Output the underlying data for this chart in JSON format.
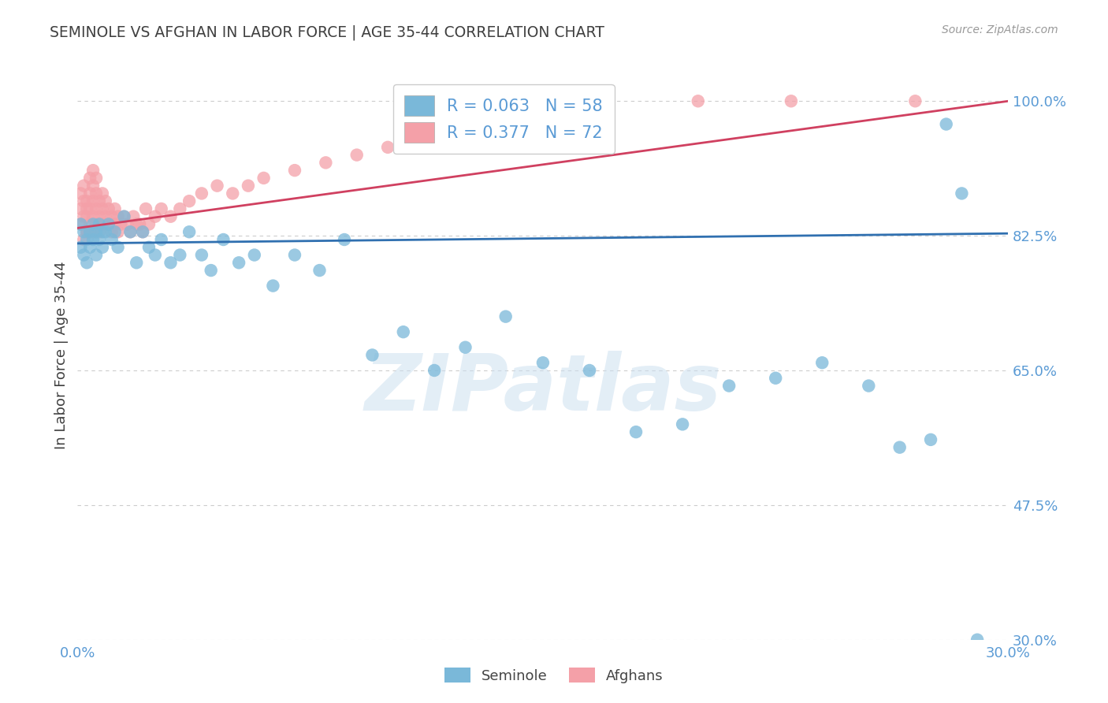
{
  "title": "SEMINOLE VS AFGHAN IN LABOR FORCE | AGE 35-44 CORRELATION CHART",
  "source": "Source: ZipAtlas.com",
  "ylabel": "In Labor Force | Age 35-44",
  "xlim": [
    0.0,
    0.3
  ],
  "ylim": [
    0.3,
    1.04
  ],
  "ytick_vals": [
    0.3,
    0.475,
    0.65,
    0.825,
    1.0
  ],
  "ytick_labels": [
    "30.0%",
    "47.5%",
    "65.0%",
    "82.5%",
    "100.0%"
  ],
  "xtick_vals": [
    0.0,
    0.05,
    0.1,
    0.15,
    0.2,
    0.25,
    0.3
  ],
  "xtick_labels": [
    "0.0%",
    "",
    "",
    "",
    "",
    "",
    "30.0%"
  ],
  "seminole_color": "#7ab8d9",
  "afghan_color": "#f4a0a8",
  "seminole_line_color": "#3070b0",
  "afghan_line_color": "#d04060",
  "legend_R_seminole": "R = 0.063",
  "legend_N_seminole": "N = 58",
  "legend_R_afghan": "R = 0.377",
  "legend_N_afghan": "N = 72",
  "watermark": "ZIPatlas",
  "title_color": "#404040",
  "ylabel_color": "#404040",
  "tick_color": "#5b9bd5",
  "grid_color": "#cccccc",
  "seminole_x": [
    0.001,
    0.001,
    0.002,
    0.002,
    0.003,
    0.003,
    0.004,
    0.004,
    0.005,
    0.005,
    0.006,
    0.006,
    0.007,
    0.007,
    0.008,
    0.008,
    0.009,
    0.01,
    0.011,
    0.012,
    0.013,
    0.015,
    0.017,
    0.019,
    0.021,
    0.023,
    0.025,
    0.027,
    0.03,
    0.033,
    0.036,
    0.04,
    0.043,
    0.047,
    0.052,
    0.057,
    0.063,
    0.07,
    0.078,
    0.086,
    0.095,
    0.105,
    0.115,
    0.125,
    0.138,
    0.15,
    0.165,
    0.18,
    0.195,
    0.21,
    0.225,
    0.24,
    0.255,
    0.265,
    0.275,
    0.28,
    0.285,
    0.29
  ],
  "seminole_y": [
    0.84,
    0.81,
    0.83,
    0.8,
    0.82,
    0.79,
    0.83,
    0.81,
    0.84,
    0.82,
    0.83,
    0.8,
    0.84,
    0.82,
    0.83,
    0.81,
    0.83,
    0.84,
    0.82,
    0.83,
    0.81,
    0.85,
    0.83,
    0.79,
    0.83,
    0.81,
    0.8,
    0.82,
    0.79,
    0.8,
    0.83,
    0.8,
    0.78,
    0.82,
    0.79,
    0.8,
    0.76,
    0.8,
    0.78,
    0.82,
    0.67,
    0.7,
    0.65,
    0.68,
    0.72,
    0.66,
    0.65,
    0.57,
    0.58,
    0.63,
    0.64,
    0.66,
    0.63,
    0.55,
    0.56,
    0.97,
    0.88,
    0.3
  ],
  "afghan_x": [
    0.001,
    0.001,
    0.001,
    0.002,
    0.002,
    0.002,
    0.002,
    0.003,
    0.003,
    0.003,
    0.003,
    0.003,
    0.004,
    0.004,
    0.004,
    0.004,
    0.005,
    0.005,
    0.005,
    0.005,
    0.005,
    0.006,
    0.006,
    0.006,
    0.006,
    0.007,
    0.007,
    0.007,
    0.008,
    0.008,
    0.008,
    0.009,
    0.009,
    0.01,
    0.01,
    0.011,
    0.011,
    0.012,
    0.012,
    0.013,
    0.013,
    0.014,
    0.015,
    0.016,
    0.017,
    0.018,
    0.019,
    0.02,
    0.021,
    0.022,
    0.023,
    0.025,
    0.027,
    0.03,
    0.033,
    0.036,
    0.04,
    0.045,
    0.05,
    0.055,
    0.06,
    0.07,
    0.08,
    0.09,
    0.1,
    0.11,
    0.13,
    0.15,
    0.17,
    0.2,
    0.23,
    0.27
  ],
  "afghan_y": [
    0.84,
    0.86,
    0.88,
    0.82,
    0.85,
    0.87,
    0.89,
    0.83,
    0.85,
    0.87,
    0.83,
    0.86,
    0.84,
    0.86,
    0.88,
    0.9,
    0.85,
    0.83,
    0.87,
    0.89,
    0.91,
    0.84,
    0.86,
    0.88,
    0.9,
    0.83,
    0.85,
    0.87,
    0.84,
    0.86,
    0.88,
    0.85,
    0.87,
    0.84,
    0.86,
    0.83,
    0.85,
    0.84,
    0.86,
    0.83,
    0.85,
    0.84,
    0.85,
    0.84,
    0.83,
    0.85,
    0.84,
    0.84,
    0.83,
    0.86,
    0.84,
    0.85,
    0.86,
    0.85,
    0.86,
    0.87,
    0.88,
    0.89,
    0.88,
    0.89,
    0.9,
    0.91,
    0.92,
    0.93,
    0.94,
    0.95,
    0.97,
    0.98,
    1.0,
    1.0,
    1.0,
    1.0
  ],
  "sem_line_x": [
    0.0,
    0.3
  ],
  "sem_line_y": [
    0.815,
    0.828
  ],
  "afg_line_x": [
    0.0,
    0.3
  ],
  "afg_line_y": [
    0.835,
    1.0
  ]
}
